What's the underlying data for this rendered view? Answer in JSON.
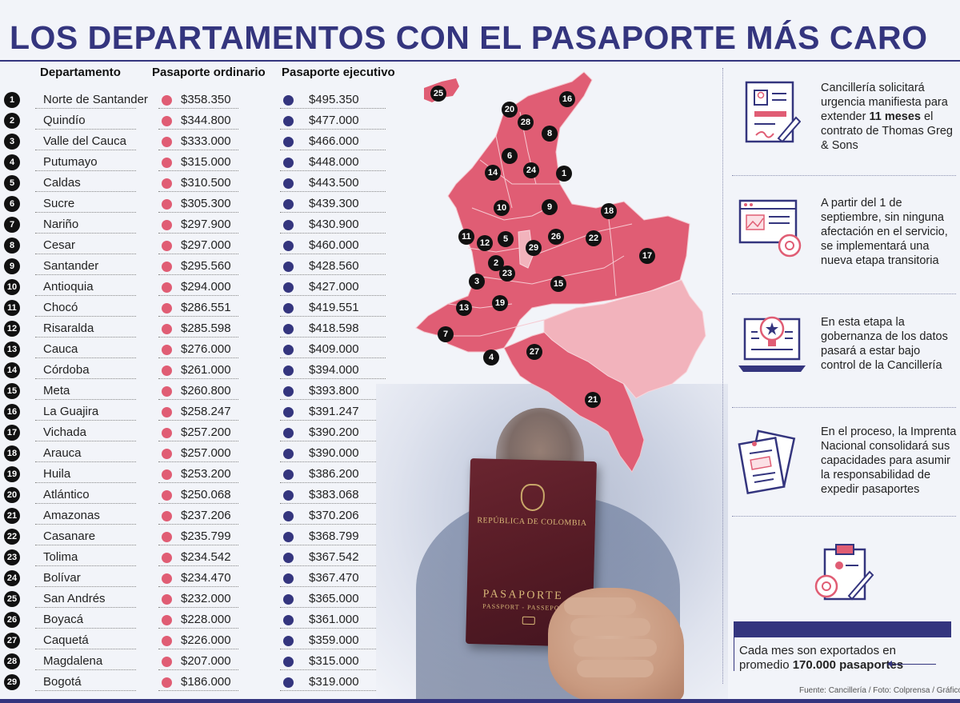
{
  "title": "LOS DEPARTAMENTOS CON EL PASAPORTE MÁS CARO",
  "headers": {
    "departamento": "Departamento",
    "ordinario": "Pasaporte ordinario",
    "ejecutivo": "Pasaporte ejecutivo"
  },
  "rows": [
    {
      "n": "1",
      "dept": "Norte de Santander",
      "ord": "$358.350",
      "eje": "$495.350"
    },
    {
      "n": "2",
      "dept": "Quindío",
      "ord": "$344.800",
      "eje": "$477.000"
    },
    {
      "n": "3",
      "dept": "Valle del Cauca",
      "ord": "$333.000",
      "eje": "$466.000"
    },
    {
      "n": "4",
      "dept": "Putumayo",
      "ord": "$315.000",
      "eje": "$448.000"
    },
    {
      "n": "5",
      "dept": "Caldas",
      "ord": "$310.500",
      "eje": "$443.500"
    },
    {
      "n": "6",
      "dept": "Sucre",
      "ord": "$305.300",
      "eje": "$439.300"
    },
    {
      "n": "7",
      "dept": "Nariño",
      "ord": "$297.900",
      "eje": "$430.900"
    },
    {
      "n": "8",
      "dept": "Cesar",
      "ord": "$297.000",
      "eje": "$460.000"
    },
    {
      "n": "9",
      "dept": "Santander",
      "ord": "$295.560",
      "eje": "$428.560"
    },
    {
      "n": "10",
      "dept": "Antioquia",
      "ord": "$294.000",
      "eje": "$427.000"
    },
    {
      "n": "11",
      "dept": "Chocó",
      "ord": "$286.551",
      "eje": "$419.551"
    },
    {
      "n": "12",
      "dept": "Risaralda",
      "ord": "$285.598",
      "eje": "$418.598"
    },
    {
      "n": "13",
      "dept": "Cauca",
      "ord": "$276.000",
      "eje": "$409.000"
    },
    {
      "n": "14",
      "dept": "Córdoba",
      "ord": "$261.000",
      "eje": "$394.000"
    },
    {
      "n": "15",
      "dept": "Meta",
      "ord": "$260.800",
      "eje": "$393.800"
    },
    {
      "n": "16",
      "dept": "La Guajira",
      "ord": "$258.247",
      "eje": "$391.247"
    },
    {
      "n": "17",
      "dept": "Vichada",
      "ord": "$257.200",
      "eje": "$390.200"
    },
    {
      "n": "18",
      "dept": "Arauca",
      "ord": "$257.000",
      "eje": "$390.000"
    },
    {
      "n": "19",
      "dept": "Huila",
      "ord": "$253.200",
      "eje": "$386.200"
    },
    {
      "n": "20",
      "dept": "Atlántico",
      "ord": "$250.068",
      "eje": "$383.068"
    },
    {
      "n": "21",
      "dept": "Amazonas",
      "ord": "$237.206",
      "eje": "$370.206"
    },
    {
      "n": "22",
      "dept": "Casanare",
      "ord": "$235.799",
      "eje": "$368.799"
    },
    {
      "n": "23",
      "dept": "Tolima",
      "ord": "$234.542",
      "eje": "$367.542"
    },
    {
      "n": "24",
      "dept": "Bolívar",
      "ord": "$234.470",
      "eje": "$367.470"
    },
    {
      "n": "25",
      "dept": "San Andrés",
      "ord": "$232.000",
      "eje": "$365.000"
    },
    {
      "n": "26",
      "dept": "Boyacá",
      "ord": "$228.000",
      "eje": "$361.000"
    },
    {
      "n": "27",
      "dept": "Caquetá",
      "ord": "$226.000",
      "eje": "$359.000"
    },
    {
      "n": "28",
      "dept": "Magdalena",
      "ord": "$207.000",
      "eje": "$315.000"
    },
    {
      "n": "29",
      "dept": "Bogotá",
      "ord": "$186.000",
      "eje": "$319.000"
    }
  ],
  "map_labels": [
    "25",
    "20",
    "16",
    "28",
    "8",
    "6",
    "14",
    "24",
    "1",
    "10",
    "9",
    "18",
    "11",
    "12",
    "5",
    "29",
    "26",
    "22",
    "17",
    "2",
    "23",
    "3",
    "15",
    "13",
    "19",
    "7",
    "4",
    "27",
    "21"
  ],
  "passport": {
    "republica": "REPÚBLICA DE COLOMBIA",
    "title": "PASAPORTE",
    "subtitle": "PASSPORT - PASSEPORT"
  },
  "notes": {
    "n1_pre": "Cancillería solicitará urgencia manifiesta para extender ",
    "n1_bold": "11 meses",
    "n1_post": " el contrato de Thomas Greg & Sons",
    "n2": "A partir del 1 de septiembre, sin ninguna afectación en el servicio, se implementará una nueva etapa transitoria",
    "n3": "En esta etapa  la gobernanza de los datos pasará a estar bajo control de la Cancillería",
    "n4": "En el proceso, la Imprenta Nacional consolidará sus capacidades para asumir la responsabilidad de expedir pasaportes"
  },
  "export": {
    "line1": "Cada mes son exportados en",
    "line2_pre": "promedio ",
    "line2_bold": "170.000 pasaportes"
  },
  "source": "Fuente: Cancillería / Foto: Colprensa / Gráfico: LR-AA",
  "colors": {
    "navy": "#34357e",
    "pink": "#e05d74",
    "light_pink": "#f2b3bc"
  }
}
